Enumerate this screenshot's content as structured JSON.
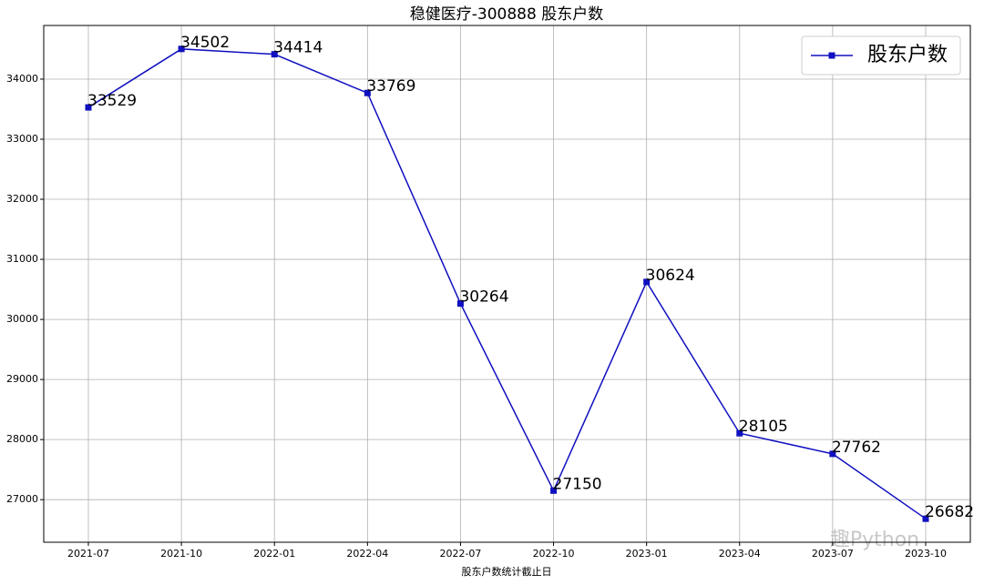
{
  "chart_data": {
    "type": "line",
    "title": "稳健医疗-300888 股东户数",
    "x_label": "股东户数统计截止日",
    "categories": [
      "2021-07",
      "2021-10",
      "2022-01",
      "2022-04",
      "2022-07",
      "2022-10",
      "2023-01",
      "2023-04",
      "2023-07",
      "2023-10"
    ],
    "series": [
      {
        "name": "股东户数",
        "color": "#1010c0",
        "marker": "square",
        "values": [
          33529,
          34502,
          34414,
          33769,
          30264,
          27150,
          30624,
          28105,
          27762,
          26682
        ]
      }
    ],
    "ylim": [
      26291,
      34893
    ],
    "yticks": [
      27000,
      28000,
      29000,
      30000,
      31000,
      32000,
      33000,
      34000
    ],
    "grid": true,
    "legend": "upper right",
    "data_labels": true,
    "watermark": "趣Python"
  }
}
